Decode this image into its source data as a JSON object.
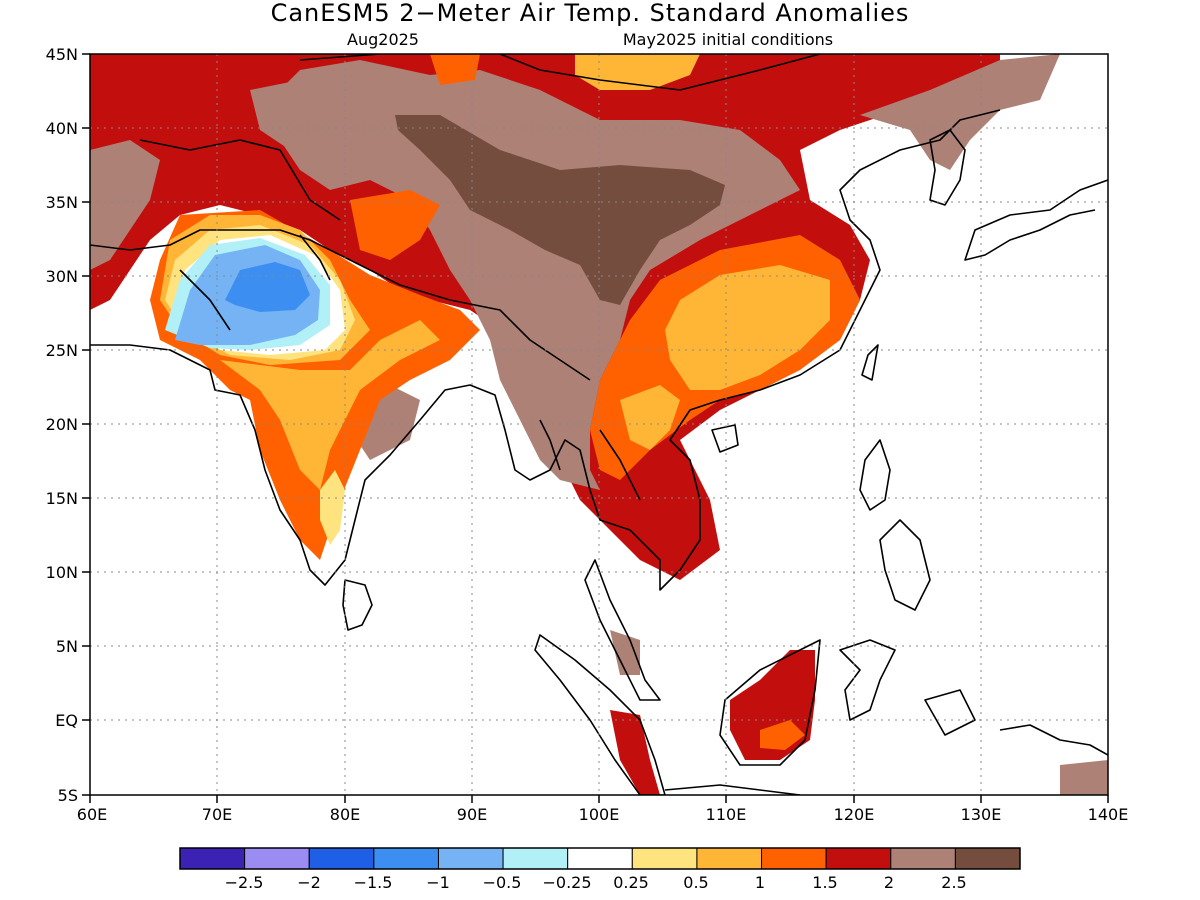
{
  "title": "CanESM5 2−Meter Air Temp. Standard Anomalies",
  "subtitle_left": "Aug2025",
  "subtitle_right": "May2025 initial conditions",
  "lat_labels": [
    "45N",
    "40N",
    "35N",
    "30N",
    "25N",
    "20N",
    "15N",
    "10N",
    "5N",
    "EQ",
    "5S"
  ],
  "lon_labels": [
    "60E",
    "70E",
    "80E",
    "90E",
    "100E",
    "110E",
    "120E",
    "130E",
    "140E"
  ],
  "colorbar": {
    "labels": [
      "−2.5",
      "−2",
      "−1.5",
      "−1",
      "−0.5",
      "−0.25",
      "0.25",
      "0.5",
      "1",
      "1.5",
      "2",
      "2.5"
    ],
    "colors": [
      "#3b22b4",
      "#9b8cf4",
      "#1f5fe6",
      "#3c8ff0",
      "#76b3f5",
      "#b2f0f7",
      "#ffffff",
      "#ffe37e",
      "#ffb637",
      "#ff6100",
      "#c30e0e",
      "#ae8177",
      "#744d3f"
    ]
  },
  "palette": {
    "c_025": "#ffe37e",
    "c_05": "#ffb637",
    "c_1": "#ff6100",
    "c_15": "#c30e0e",
    "c_2": "#ae8177",
    "c_25": "#744d3f",
    "c_m025": "#b2f0f7",
    "c_m05": "#76b3f5",
    "c_m1": "#3c8ff0"
  }
}
